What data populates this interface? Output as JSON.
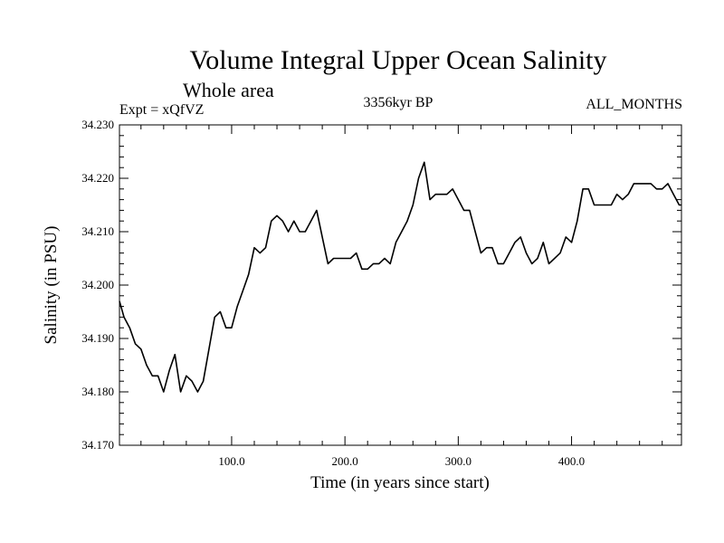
{
  "chart_data": {
    "type": "line",
    "title": "Volume Integral Upper Ocean Salinity",
    "subtitle": "Whole area",
    "experiment": "Expt = xQfVZ",
    "period": "3356kyr BP",
    "months": "ALL_MONTHS",
    "xlabel": "Time (in years since start)",
    "ylabel": "Salinity (in PSU)",
    "xlim": [
      1,
      497
    ],
    "ylim": [
      34.17,
      34.23
    ],
    "xticks": [
      100,
      200,
      300,
      400
    ],
    "xtick_labels": [
      "100.0",
      "200.0",
      "300.0",
      "400.0"
    ],
    "yticks": [
      34.17,
      34.18,
      34.19,
      34.2,
      34.21,
      34.22,
      34.23
    ],
    "ytick_labels": [
      "34.170",
      "34.180",
      "34.190",
      "34.200",
      "34.210",
      "34.220",
      "34.230"
    ],
    "series": [
      {
        "name": "Salinity",
        "x": [
          1,
          5,
          10,
          15,
          20,
          25,
          30,
          35,
          40,
          45,
          50,
          55,
          60,
          65,
          70,
          75,
          80,
          85,
          90,
          95,
          100,
          105,
          110,
          115,
          120,
          125,
          130,
          135,
          140,
          145,
          150,
          155,
          160,
          165,
          170,
          175,
          180,
          185,
          190,
          195,
          200,
          205,
          210,
          215,
          220,
          225,
          230,
          235,
          240,
          245,
          250,
          255,
          260,
          265,
          270,
          275,
          280,
          285,
          290,
          295,
          300,
          305,
          310,
          315,
          320,
          325,
          330,
          335,
          340,
          345,
          350,
          355,
          360,
          365,
          370,
          375,
          380,
          385,
          390,
          395,
          400,
          405,
          410,
          415,
          420,
          425,
          430,
          435,
          440,
          445,
          450,
          455,
          460,
          465,
          470,
          475,
          480,
          485,
          490,
          495,
          497
        ],
        "values": [
          34.197,
          34.194,
          34.192,
          34.189,
          34.188,
          34.185,
          34.183,
          34.183,
          34.18,
          34.184,
          34.187,
          34.18,
          34.183,
          34.182,
          34.18,
          34.182,
          34.188,
          34.194,
          34.195,
          34.192,
          34.192,
          34.196,
          34.199,
          34.202,
          34.207,
          34.206,
          34.207,
          34.212,
          34.213,
          34.212,
          34.21,
          34.212,
          34.21,
          34.21,
          34.212,
          34.214,
          34.209,
          34.204,
          34.205,
          34.205,
          34.205,
          34.205,
          34.206,
          34.203,
          34.203,
          34.204,
          34.204,
          34.205,
          34.204,
          34.208,
          34.21,
          34.212,
          34.215,
          34.22,
          34.223,
          34.216,
          34.217,
          34.217,
          34.217,
          34.218,
          34.216,
          34.214,
          34.214,
          34.21,
          34.206,
          34.207,
          34.207,
          34.204,
          34.204,
          34.206,
          34.208,
          34.209,
          34.206,
          34.204,
          34.205,
          34.208,
          34.204,
          34.205,
          34.206,
          34.209,
          34.208,
          34.212,
          34.218,
          34.218,
          34.215,
          34.215,
          34.215,
          34.215,
          34.217,
          34.216,
          34.217,
          34.219,
          34.219,
          34.219,
          34.219,
          34.218,
          34.218,
          34.219,
          34.217,
          34.215,
          34.215
        ]
      }
    ]
  }
}
